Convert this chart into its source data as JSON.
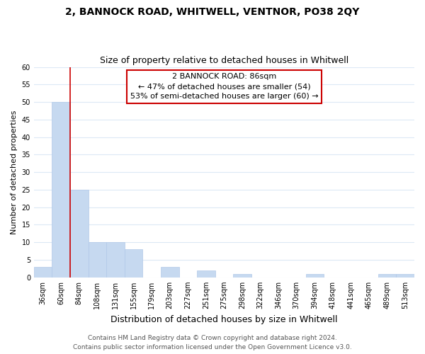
{
  "title": "2, BANNOCK ROAD, WHITWELL, VENTNOR, PO38 2QY",
  "subtitle": "Size of property relative to detached houses in Whitwell",
  "xlabel": "Distribution of detached houses by size in Whitwell",
  "ylabel": "Number of detached properties",
  "categories": [
    "36sqm",
    "60sqm",
    "84sqm",
    "108sqm",
    "131sqm",
    "155sqm",
    "179sqm",
    "203sqm",
    "227sqm",
    "251sqm",
    "275sqm",
    "298sqm",
    "322sqm",
    "346sqm",
    "370sqm",
    "394sqm",
    "418sqm",
    "441sqm",
    "465sqm",
    "489sqm",
    "513sqm"
  ],
  "values": [
    3,
    50,
    25,
    10,
    10,
    8,
    0,
    3,
    0,
    2,
    0,
    1,
    0,
    0,
    0,
    1,
    0,
    0,
    0,
    1,
    1
  ],
  "bar_color": "#c6d9f0",
  "bar_edge_color": "#b0c8e8",
  "vline_color": "#cc0000",
  "vline_index": 1.5,
  "annotation_title": "2 BANNOCK ROAD: 86sqm",
  "annotation_line1": "← 47% of detached houses are smaller (54)",
  "annotation_line2": "53% of semi-detached houses are larger (60) →",
  "annotation_box_color": "#ffffff",
  "annotation_box_edge": "#cc0000",
  "ylim": [
    0,
    60
  ],
  "yticks": [
    0,
    5,
    10,
    15,
    20,
    25,
    30,
    35,
    40,
    45,
    50,
    55,
    60
  ],
  "footer1": "Contains HM Land Registry data © Crown copyright and database right 2024.",
  "footer2": "Contains public sector information licensed under the Open Government Licence v3.0.",
  "background_color": "#ffffff",
  "grid_color": "#dce9f5",
  "title_fontsize": 10,
  "subtitle_fontsize": 9,
  "xlabel_fontsize": 9,
  "ylabel_fontsize": 8,
  "tick_fontsize": 7,
  "annotation_fontsize": 8,
  "footer_fontsize": 6.5
}
